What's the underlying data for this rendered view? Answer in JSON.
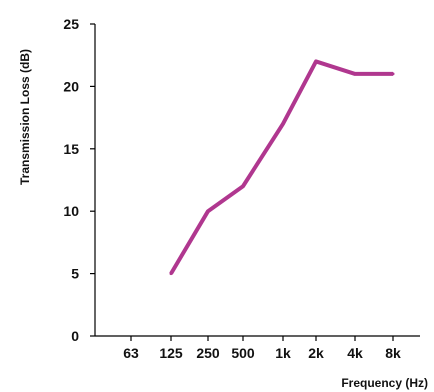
{
  "chart_data": {
    "type": "line",
    "title": "",
    "xlabel": "Frequency (Hz)",
    "ylabel": "Transmission Loss (dB)",
    "categories": [
      "63",
      "125",
      "250",
      "500",
      "1k",
      "2k",
      "4k",
      "8k"
    ],
    "ylim": [
      0,
      25
    ],
    "yticks": [
      "0",
      "5",
      "10",
      "15",
      "20",
      "25"
    ],
    "grid": false,
    "series": [
      {
        "color": "#b0378f",
        "values": [
          null,
          5,
          10,
          12,
          17,
          22,
          21,
          21
        ]
      }
    ]
  }
}
